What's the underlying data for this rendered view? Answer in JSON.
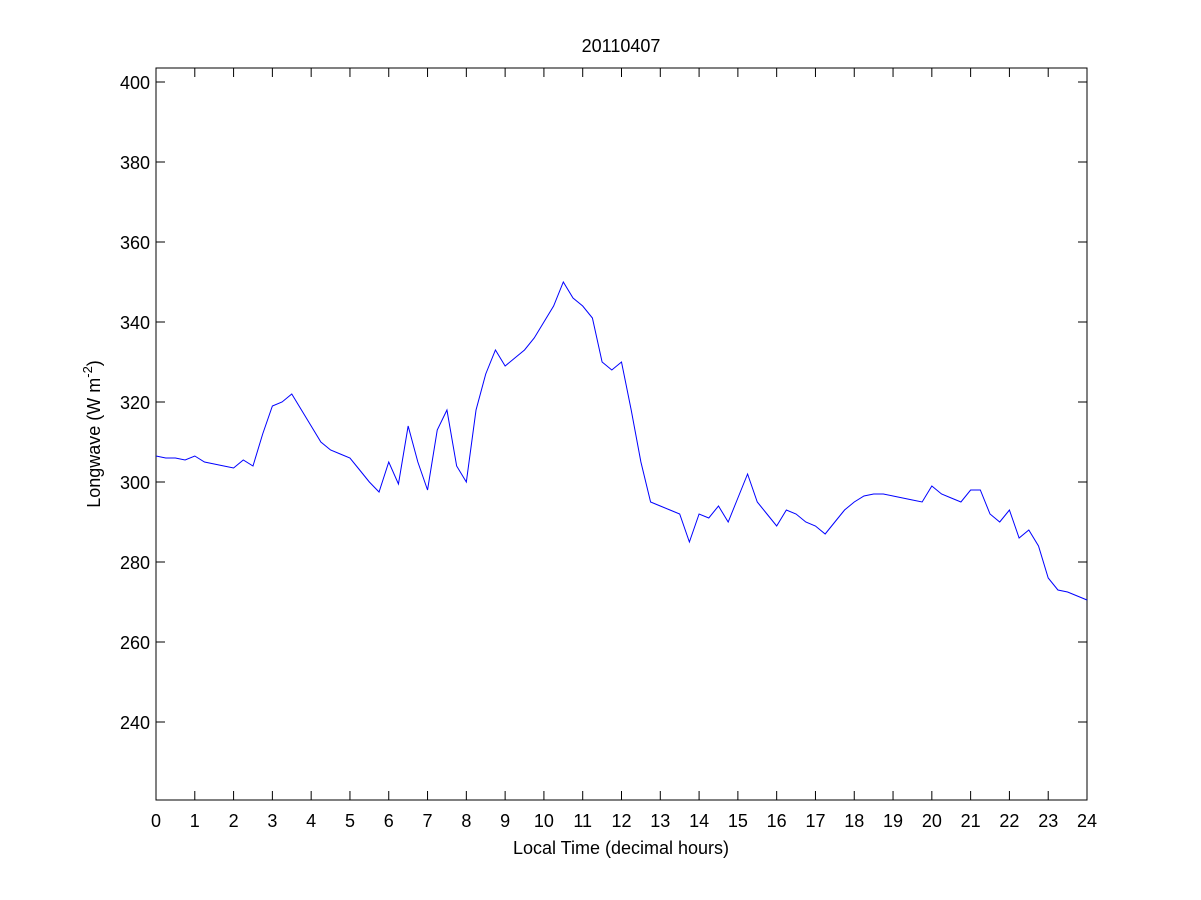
{
  "chart_data": {
    "type": "line",
    "title": "20110407",
    "x_label": "Local Time (decimal hours)",
    "y_label": "Longwave (W m",
    "y_label_sup": "-2",
    "y_label_end": ")",
    "x": [
      0,
      0.25,
      0.5,
      0.75,
      1,
      1.25,
      1.5,
      1.75,
      2,
      2.25,
      2.5,
      2.75,
      3,
      3.25,
      3.5,
      3.75,
      4,
      4.25,
      4.5,
      4.75,
      5,
      5.25,
      5.5,
      5.75,
      6,
      6.25,
      6.5,
      6.75,
      7,
      7.25,
      7.5,
      7.75,
      8,
      8.25,
      8.5,
      8.75,
      9,
      9.25,
      9.5,
      9.75,
      10,
      10.25,
      10.5,
      10.75,
      11,
      11.25,
      11.5,
      11.75,
      12,
      12.25,
      12.5,
      12.75,
      13,
      13.25,
      13.5,
      13.75,
      14,
      14.25,
      14.5,
      14.75,
      15,
      15.25,
      15.5,
      15.75,
      16,
      16.25,
      16.5,
      16.75,
      17,
      17.25,
      17.5,
      17.75,
      18,
      18.25,
      18.5,
      18.75,
      19,
      19.25,
      19.5,
      19.75,
      20,
      20.25,
      20.5,
      20.75,
      21,
      21.25,
      21.5,
      21.75,
      22,
      22.25,
      22.5,
      22.75,
      23,
      23.25,
      23.5,
      23.75,
      24
    ],
    "series": [
      {
        "color": "#0000ff",
        "values": [
          306.5,
          306,
          306,
          305.5,
          306.5,
          305,
          304.5,
          304,
          303.5,
          305.5,
          304,
          312,
          319,
          320,
          322,
          318,
          314,
          310,
          308,
          307,
          306,
          303,
          300,
          297.5,
          305,
          299.5,
          314,
          305,
          298,
          313,
          318,
          304,
          300,
          318,
          327,
          333,
          329,
          331,
          333,
          336,
          340,
          344,
          350,
          346,
          344,
          341,
          330,
          328,
          330,
          318,
          305,
          295,
          294,
          293,
          292,
          285,
          292,
          291,
          294,
          290,
          296,
          302,
          295,
          292,
          289,
          293,
          292,
          290,
          289,
          287,
          290,
          293,
          295,
          296.5,
          297,
          297,
          296.5,
          296,
          295.5,
          295,
          299,
          297,
          296,
          295,
          298,
          298,
          292,
          290,
          293,
          286,
          288,
          284,
          276,
          273,
          272.5,
          271.5,
          270.5
        ]
      }
    ],
    "xlim": [
      0,
      24
    ],
    "ylim": [
      220.5,
      403.5
    ],
    "xticks": [
      0,
      1,
      2,
      3,
      4,
      5,
      6,
      7,
      8,
      9,
      10,
      11,
      12,
      13,
      14,
      15,
      16,
      17,
      18,
      19,
      20,
      21,
      22,
      23,
      24
    ],
    "yticks": [
      240,
      260,
      280,
      300,
      320,
      340,
      360,
      380,
      400
    ]
  }
}
